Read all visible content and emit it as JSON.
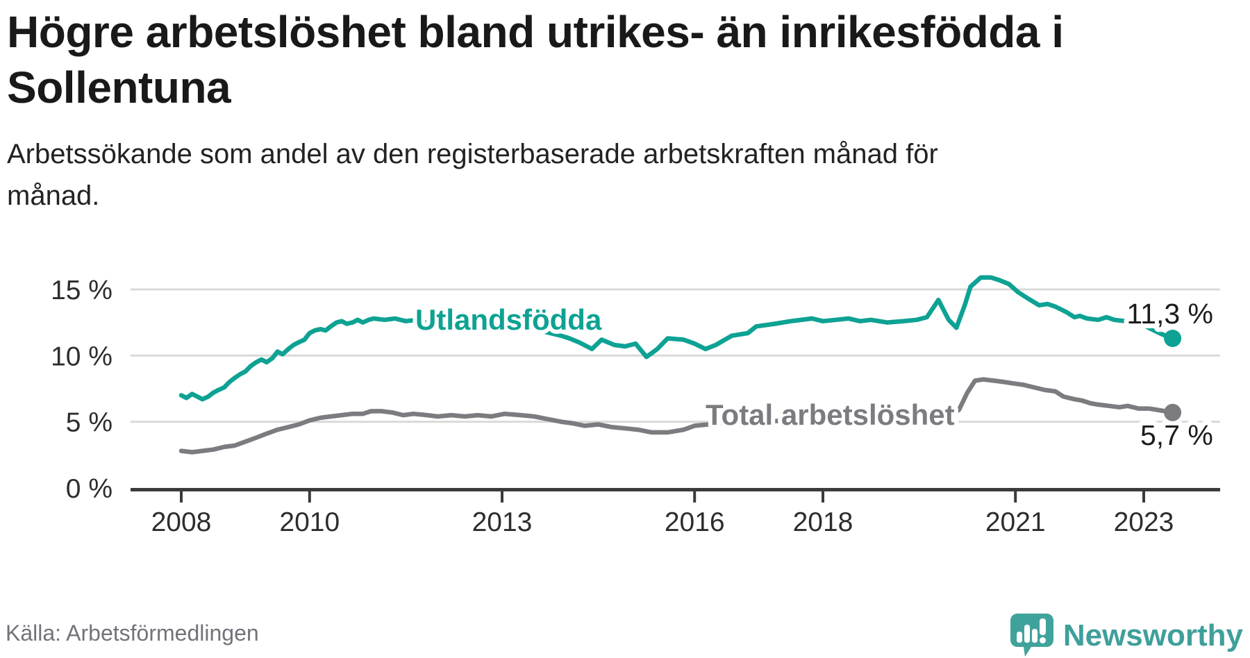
{
  "header": {
    "title": "Högre arbetslöshet bland utrikes- än inrikesfödda i Sollentuna",
    "title_lines": [
      "Högre arbetslöshet bland utrikes- än inrikesfödda i",
      "Sollentuna"
    ],
    "subtitle": "Arbetssökande som andel av den registerbaserade arbetskraften månad för månad.",
    "subtitle_lines": [
      "Arbetssökande som andel av den registerbaserade arbetskraften månad för",
      "månad."
    ]
  },
  "footer": {
    "source": "Källa: Arbetsförmedlingen",
    "brand": "Newsworthy"
  },
  "colors": {
    "teal_line": "#0da293",
    "gray_line": "#7b7b80",
    "value_label": "#1c1c1c",
    "axis": "#3b3b3b",
    "axis_text": "#2d2d2d",
    "gridline": "#d9d9d9",
    "brand_teal": "#3fa39c",
    "source_text": "#73727a"
  },
  "chart_data": {
    "type": "line",
    "title": "Högre arbetslöshet bland utrikes- än inrikesfödda i Sollentuna",
    "subtitle": "Arbetssökande som andel av den registerbaserade arbetskraften månad för månad.",
    "xlabel": "",
    "ylabel": "",
    "x_axis": {
      "ticks": [
        2008,
        2010,
        2013,
        2016,
        2018,
        2021,
        2023
      ],
      "start": 2008.0,
      "end": 2023.45,
      "unit": "year-month"
    },
    "y_axis": {
      "ticks": [
        0,
        5,
        10,
        15
      ],
      "tick_labels": [
        "0 %",
        "5 %",
        "10 %",
        "15 %"
      ],
      "min": 0,
      "max": 16.3,
      "grid": true
    },
    "legend_position": "inline-annotations",
    "series": [
      {
        "name": "Utlandsfödda",
        "color": "#0da293",
        "end_value": 11.3,
        "end_label": "11,3 %",
        "points": [
          [
            2008.0,
            7.0
          ],
          [
            2008.08,
            6.8
          ],
          [
            2008.17,
            7.1
          ],
          [
            2008.25,
            6.9
          ],
          [
            2008.33,
            6.7
          ],
          [
            2008.42,
            6.9
          ],
          [
            2008.5,
            7.2
          ],
          [
            2008.58,
            7.4
          ],
          [
            2008.67,
            7.6
          ],
          [
            2008.75,
            8.0
          ],
          [
            2008.83,
            8.3
          ],
          [
            2008.92,
            8.6
          ],
          [
            2009.0,
            8.8
          ],
          [
            2009.08,
            9.2
          ],
          [
            2009.17,
            9.5
          ],
          [
            2009.25,
            9.7
          ],
          [
            2009.33,
            9.5
          ],
          [
            2009.42,
            9.8
          ],
          [
            2009.5,
            10.3
          ],
          [
            2009.58,
            10.1
          ],
          [
            2009.67,
            10.5
          ],
          [
            2009.75,
            10.8
          ],
          [
            2009.83,
            11.0
          ],
          [
            2009.92,
            11.2
          ],
          [
            2010.0,
            11.7
          ],
          [
            2010.08,
            11.9
          ],
          [
            2010.17,
            12.0
          ],
          [
            2010.25,
            11.9
          ],
          [
            2010.33,
            12.2
          ],
          [
            2010.42,
            12.5
          ],
          [
            2010.5,
            12.6
          ],
          [
            2010.58,
            12.4
          ],
          [
            2010.67,
            12.5
          ],
          [
            2010.75,
            12.7
          ],
          [
            2010.83,
            12.5
          ],
          [
            2010.92,
            12.7
          ],
          [
            2011.0,
            12.8
          ],
          [
            2011.17,
            12.7
          ],
          [
            2011.33,
            12.8
          ],
          [
            2011.5,
            12.6
          ],
          [
            2011.67,
            12.7
          ],
          [
            2011.83,
            12.5
          ],
          [
            2012.0,
            12.6
          ],
          [
            2012.25,
            12.4
          ],
          [
            2012.5,
            12.5
          ],
          [
            2012.75,
            12.3
          ],
          [
            2013.0,
            12.3
          ],
          [
            2013.25,
            12.2
          ],
          [
            2013.5,
            12.0
          ],
          [
            2013.75,
            11.7
          ],
          [
            2013.92,
            11.5
          ],
          [
            2014.05,
            11.3
          ],
          [
            2014.2,
            11.0
          ],
          [
            2014.4,
            10.5
          ],
          [
            2014.55,
            11.2
          ],
          [
            2014.75,
            10.8
          ],
          [
            2014.92,
            10.7
          ],
          [
            2015.08,
            10.9
          ],
          [
            2015.25,
            9.9
          ],
          [
            2015.42,
            10.5
          ],
          [
            2015.58,
            11.3
          ],
          [
            2015.83,
            11.2
          ],
          [
            2016.0,
            10.9
          ],
          [
            2016.17,
            10.5
          ],
          [
            2016.33,
            10.8
          ],
          [
            2016.58,
            11.5
          ],
          [
            2016.83,
            11.7
          ],
          [
            2016.96,
            12.2
          ],
          [
            2017.25,
            12.4
          ],
          [
            2017.5,
            12.6
          ],
          [
            2017.83,
            12.8
          ],
          [
            2018.0,
            12.6
          ],
          [
            2018.2,
            12.7
          ],
          [
            2018.4,
            12.8
          ],
          [
            2018.58,
            12.6
          ],
          [
            2018.75,
            12.7
          ],
          [
            2019.0,
            12.5
          ],
          [
            2019.25,
            12.6
          ],
          [
            2019.46,
            12.7
          ],
          [
            2019.62,
            12.9
          ],
          [
            2019.8,
            14.2
          ],
          [
            2019.96,
            12.7
          ],
          [
            2020.08,
            12.1
          ],
          [
            2020.21,
            13.8
          ],
          [
            2020.3,
            15.2
          ],
          [
            2020.46,
            15.9
          ],
          [
            2020.62,
            15.9
          ],
          [
            2020.75,
            15.7
          ],
          [
            2020.9,
            15.4
          ],
          [
            2021.04,
            14.8
          ],
          [
            2021.2,
            14.3
          ],
          [
            2021.37,
            13.8
          ],
          [
            2021.5,
            13.9
          ],
          [
            2021.62,
            13.7
          ],
          [
            2021.79,
            13.3
          ],
          [
            2021.92,
            12.9
          ],
          [
            2022.0,
            13.0
          ],
          [
            2022.12,
            12.8
          ],
          [
            2022.29,
            12.7
          ],
          [
            2022.42,
            12.9
          ],
          [
            2022.54,
            12.7
          ],
          [
            2022.71,
            12.6
          ],
          [
            2022.83,
            12.5
          ],
          [
            2022.96,
            12.4
          ],
          [
            2023.12,
            12.0
          ],
          [
            2023.29,
            11.6
          ],
          [
            2023.45,
            11.3
          ]
        ]
      },
      {
        "name": "Total arbetslöshet",
        "color": "#7b7b80",
        "end_value": 5.7,
        "end_label": "5,7 %",
        "points": [
          [
            2008.0,
            2.8
          ],
          [
            2008.17,
            2.7
          ],
          [
            2008.33,
            2.8
          ],
          [
            2008.5,
            2.9
          ],
          [
            2008.67,
            3.1
          ],
          [
            2008.83,
            3.2
          ],
          [
            2009.0,
            3.5
          ],
          [
            2009.17,
            3.8
          ],
          [
            2009.33,
            4.1
          ],
          [
            2009.5,
            4.4
          ],
          [
            2009.67,
            4.6
          ],
          [
            2009.83,
            4.8
          ],
          [
            2010.0,
            5.1
          ],
          [
            2010.17,
            5.3
          ],
          [
            2010.33,
            5.4
          ],
          [
            2010.5,
            5.5
          ],
          [
            2010.67,
            5.6
          ],
          [
            2010.83,
            5.6
          ],
          [
            2010.96,
            5.8
          ],
          [
            2011.12,
            5.8
          ],
          [
            2011.29,
            5.7
          ],
          [
            2011.46,
            5.5
          ],
          [
            2011.62,
            5.6
          ],
          [
            2011.83,
            5.5
          ],
          [
            2012.0,
            5.4
          ],
          [
            2012.21,
            5.5
          ],
          [
            2012.42,
            5.4
          ],
          [
            2012.62,
            5.5
          ],
          [
            2012.83,
            5.4
          ],
          [
            2013.04,
            5.6
          ],
          [
            2013.29,
            5.5
          ],
          [
            2013.5,
            5.4
          ],
          [
            2013.71,
            5.2
          ],
          [
            2013.92,
            5.0
          ],
          [
            2014.08,
            4.9
          ],
          [
            2014.29,
            4.7
          ],
          [
            2014.5,
            4.8
          ],
          [
            2014.71,
            4.6
          ],
          [
            2014.92,
            4.5
          ],
          [
            2015.12,
            4.4
          ],
          [
            2015.33,
            4.2
          ],
          [
            2015.58,
            4.2
          ],
          [
            2015.83,
            4.4
          ],
          [
            2016.0,
            4.7
          ],
          [
            2016.21,
            4.8
          ],
          [
            2016.5,
            4.9
          ],
          [
            2016.79,
            5.0
          ],
          [
            2017.08,
            5.0
          ],
          [
            2017.42,
            5.1
          ],
          [
            2017.71,
            5.0
          ],
          [
            2018.0,
            5.1
          ],
          [
            2018.29,
            5.2
          ],
          [
            2018.58,
            5.2
          ],
          [
            2018.92,
            5.3
          ],
          [
            2019.21,
            5.3
          ],
          [
            2019.5,
            5.4
          ],
          [
            2019.79,
            5.5
          ],
          [
            2020.0,
            5.5
          ],
          [
            2020.12,
            5.9
          ],
          [
            2020.17,
            6.4
          ],
          [
            2020.25,
            7.2
          ],
          [
            2020.37,
            8.1
          ],
          [
            2020.5,
            8.2
          ],
          [
            2020.67,
            8.1
          ],
          [
            2020.83,
            8.0
          ],
          [
            2020.96,
            7.9
          ],
          [
            2021.12,
            7.8
          ],
          [
            2021.29,
            7.6
          ],
          [
            2021.46,
            7.4
          ],
          [
            2021.62,
            7.3
          ],
          [
            2021.75,
            6.9
          ],
          [
            2021.92,
            6.7
          ],
          [
            2022.04,
            6.6
          ],
          [
            2022.17,
            6.4
          ],
          [
            2022.29,
            6.3
          ],
          [
            2022.46,
            6.2
          ],
          [
            2022.62,
            6.1
          ],
          [
            2022.75,
            6.2
          ],
          [
            2022.92,
            6.0
          ],
          [
            2023.08,
            6.0
          ],
          [
            2023.21,
            5.9
          ],
          [
            2023.45,
            5.7
          ]
        ]
      }
    ],
    "annotations": [
      {
        "text": "Utlandsfödda",
        "series": 0
      },
      {
        "text": "Total arbetslöshet",
        "series": 1
      },
      {
        "text": "11,3 %",
        "series": 0,
        "kind": "end-value"
      },
      {
        "text": "5,7 %",
        "series": 1,
        "kind": "end-value"
      }
    ]
  }
}
